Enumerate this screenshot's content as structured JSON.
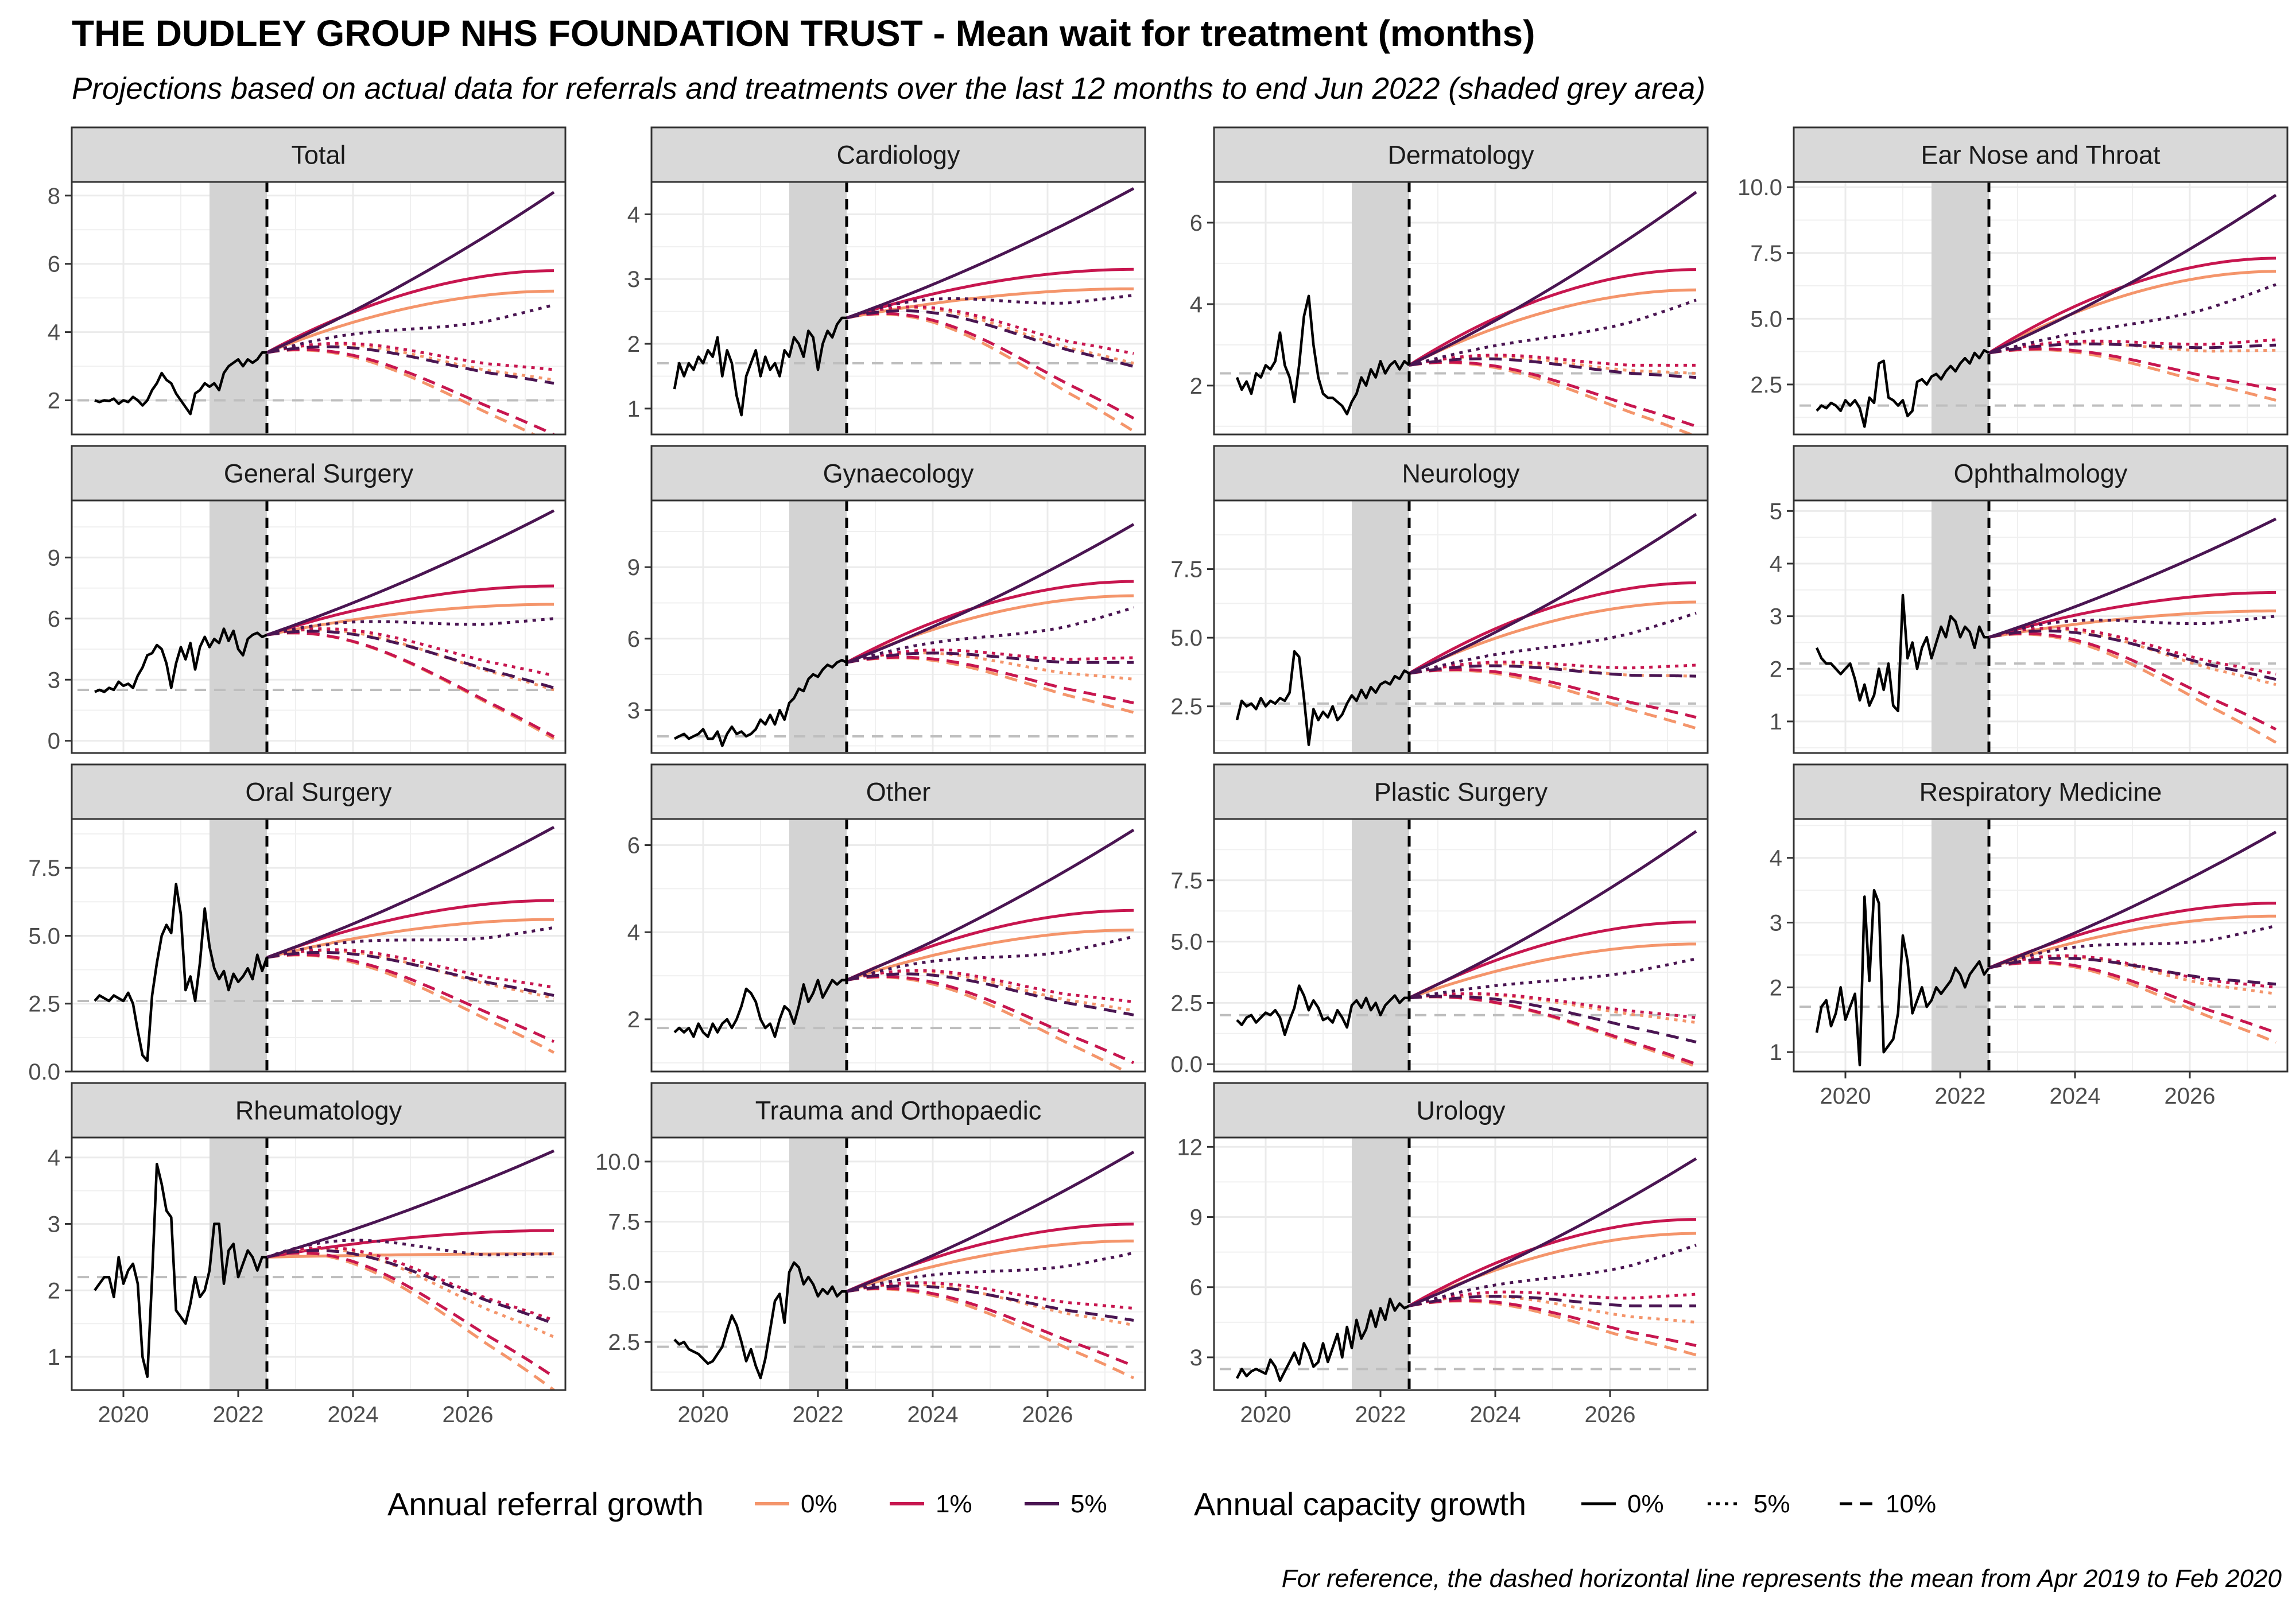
{
  "title": "THE DUDLEY GROUP NHS FOUNDATION TRUST - Mean wait for treatment (months)",
  "subtitle": "Projections based on actual data for referrals and treatments over the last 12 months to end Jun 2022 (shaded grey area)",
  "caption": "For reference, the dashed horizontal line represents the mean from Apr 2019 to Feb 2020",
  "legend": {
    "referral_title": "Annual referral growth",
    "referral_items": [
      {
        "label": "0%",
        "color": "#F4956B"
      },
      {
        "label": "1%",
        "color": "#C7164F"
      },
      {
        "label": "5%",
        "color": "#4A1552"
      }
    ],
    "capacity_title": "Annual capacity growth",
    "capacity_items": [
      {
        "label": "0%",
        "linetype": "solid"
      },
      {
        "label": "5%",
        "linetype": "dotted"
      },
      {
        "label": "10%",
        "linetype": "dashed"
      }
    ]
  },
  "chart_data": {
    "type": "line",
    "facet_layout": {
      "columns": 4,
      "rows": 4
    },
    "x_axis": {
      "range": [
        2019.1,
        2027.7
      ],
      "ticks": [
        2020,
        2022,
        2024,
        2026
      ]
    },
    "shaded_period": [
      2021.5,
      2022.5
    ],
    "projection_start": 2022.5,
    "projection_end": 2027.5,
    "colors": {
      "0%": "#F4956B",
      "1%": "#C7164F",
      "5%": "#4A1552",
      "actual": "#000000",
      "baseline": "#bebebe"
    },
    "panels": [
      {
        "name": "Total",
        "ylim": [
          1.0,
          8.4
        ],
        "yticks": [
          2,
          4,
          6,
          8
        ],
        "baseline": 2.0,
        "actual": [
          2.0,
          1.95,
          2.0,
          1.98,
          2.05,
          1.9,
          2.0,
          1.95,
          2.1,
          2.0,
          1.85,
          2.0,
          2.3,
          2.5,
          2.8,
          2.6,
          2.5,
          2.2,
          2.0,
          1.8,
          1.6,
          2.2,
          2.3,
          2.5,
          2.4,
          2.5,
          2.3,
          2.8,
          3.0,
          3.1,
          3.2,
          3.0,
          3.2,
          3.1,
          3.2,
          3.4,
          3.4
        ],
        "start": 3.4,
        "end": {
          "0": {
            "0": 5.2,
            "5": 2.6,
            "10": 0.7
          },
          "1": {
            "0": 5.8,
            "5": 2.9,
            "10": 1.0
          },
          "5": {
            "0": 8.1,
            "5": 4.8,
            "10": 2.5
          }
        }
      },
      {
        "name": "Cardiology",
        "ylim": [
          0.6,
          4.5
        ],
        "yticks": [
          1,
          2,
          3,
          4
        ],
        "baseline": 1.7,
        "actual": [
          1.3,
          1.7,
          1.5,
          1.7,
          1.6,
          1.8,
          1.7,
          1.9,
          1.8,
          2.1,
          1.5,
          1.9,
          1.7,
          1.2,
          0.9,
          1.5,
          1.7,
          1.9,
          1.5,
          1.8,
          1.6,
          1.7,
          1.5,
          1.9,
          1.8,
          2.1,
          2.0,
          1.8,
          2.2,
          2.1,
          1.6,
          2.0,
          2.2,
          2.1,
          2.3,
          2.4,
          2.4
        ],
        "start": 2.4,
        "end": {
          "0": {
            "0": 2.85,
            "5": 1.7,
            "10": 0.65
          },
          "1": {
            "0": 3.15,
            "5": 1.85,
            "10": 0.85
          },
          "5": {
            "0": 4.4,
            "5": 2.75,
            "10": 1.65
          }
        }
      },
      {
        "name": "Dermatology",
        "ylim": [
          0.8,
          7.0
        ],
        "yticks": [
          2,
          4,
          6
        ],
        "baseline": 2.3,
        "actual": [
          2.2,
          1.9,
          2.1,
          1.8,
          2.3,
          2.2,
          2.5,
          2.4,
          2.6,
          3.3,
          2.5,
          2.2,
          1.6,
          2.5,
          3.7,
          4.2,
          3.0,
          2.2,
          1.8,
          1.7,
          1.7,
          1.6,
          1.5,
          1.3,
          1.6,
          1.8,
          2.2,
          2.0,
          2.4,
          2.2,
          2.6,
          2.3,
          2.5,
          2.6,
          2.4,
          2.6,
          2.5
        ],
        "start": 2.5,
        "end": {
          "0": {
            "0": 4.35,
            "5": 2.3,
            "10": 0.75
          },
          "1": {
            "0": 4.85,
            "5": 2.5,
            "10": 1.0
          },
          "5": {
            "0": 6.75,
            "5": 4.1,
            "10": 2.2
          }
        }
      },
      {
        "name": "Ear Nose and Throat",
        "ylim": [
          0.6,
          10.2
        ],
        "yticks": [
          2.5,
          5.0,
          7.5,
          10.0
        ],
        "baseline": 1.7,
        "actual": [
          1.5,
          1.7,
          1.6,
          1.8,
          1.7,
          1.5,
          1.9,
          1.7,
          1.9,
          1.6,
          0.9,
          2.0,
          1.8,
          3.3,
          3.4,
          2.0,
          1.9,
          1.7,
          1.9,
          1.3,
          1.5,
          2.6,
          2.7,
          2.5,
          2.8,
          2.9,
          2.7,
          3.0,
          3.2,
          3.0,
          3.3,
          3.5,
          3.3,
          3.7,
          3.5,
          3.8,
          3.7
        ],
        "start": 3.7,
        "end": {
          "0": {
            "0": 6.8,
            "5": 3.8,
            "10": 1.9
          },
          "1": {
            "0": 7.3,
            "5": 4.2,
            "10": 2.3
          },
          "5": {
            "0": 9.7,
            "5": 6.3,
            "10": 4.0
          }
        }
      },
      {
        "name": "General Surgery",
        "ylim": [
          -0.6,
          11.8
        ],
        "yticks": [
          0,
          3,
          6,
          9
        ],
        "baseline": 2.5,
        "actual": [
          2.4,
          2.5,
          2.4,
          2.6,
          2.5,
          2.9,
          2.7,
          2.8,
          2.6,
          3.2,
          3.6,
          4.2,
          4.3,
          4.7,
          4.5,
          3.8,
          2.6,
          3.8,
          4.6,
          4.0,
          4.8,
          3.5,
          4.6,
          5.1,
          4.6,
          5.0,
          4.8,
          5.5,
          4.9,
          5.4,
          4.5,
          4.2,
          5.0,
          5.2,
          5.3,
          5.1,
          5.2
        ],
        "start": 5.2,
        "end": {
          "0": {
            "0": 6.7,
            "5": 2.5,
            "10": 0.1
          },
          "1": {
            "0": 7.6,
            "5": 3.2,
            "10": 0.2
          },
          "5": {
            "0": 11.3,
            "5": 6.0,
            "10": 2.6
          }
        }
      },
      {
        "name": "Gynaecology",
        "ylim": [
          1.2,
          11.8
        ],
        "yticks": [
          3,
          6,
          9
        ],
        "baseline": 1.9,
        "actual": [
          1.8,
          1.9,
          2.0,
          1.8,
          1.9,
          2.0,
          2.2,
          1.8,
          1.8,
          2.1,
          1.5,
          2.0,
          2.3,
          2.0,
          2.1,
          1.9,
          2.0,
          2.2,
          2.6,
          2.4,
          2.8,
          2.4,
          3.0,
          2.6,
          3.3,
          3.5,
          3.9,
          3.8,
          4.3,
          4.5,
          4.4,
          4.7,
          4.9,
          4.8,
          5.0,
          5.1,
          5.0
        ],
        "start": 5.0,
        "end": {
          "0": {
            "0": 7.8,
            "5": 4.3,
            "10": 2.9
          },
          "1": {
            "0": 8.4,
            "5": 5.2,
            "10": 3.3
          },
          "5": {
            "0": 10.8,
            "5": 7.3,
            "10": 5.0
          }
        }
      },
      {
        "name": "Neurology",
        "ylim": [
          0.8,
          10.0
        ],
        "yticks": [
          2.5,
          5.0,
          7.5
        ],
        "baseline": 2.6,
        "actual": [
          2.0,
          2.7,
          2.5,
          2.6,
          2.4,
          2.8,
          2.5,
          2.7,
          2.6,
          2.8,
          2.7,
          3.0,
          4.5,
          4.3,
          2.8,
          1.1,
          2.4,
          2.0,
          2.3,
          2.1,
          2.5,
          2.0,
          2.2,
          2.6,
          2.9,
          2.7,
          3.1,
          2.8,
          3.2,
          3.0,
          3.3,
          3.4,
          3.3,
          3.6,
          3.5,
          3.8,
          3.7
        ],
        "start": 3.7,
        "end": {
          "0": {
            "0": 6.3,
            "5": 3.6,
            "10": 1.7
          },
          "1": {
            "0": 7.0,
            "5": 4.0,
            "10": 2.1
          },
          "5": {
            "0": 9.5,
            "5": 5.9,
            "10": 3.6
          }
        }
      },
      {
        "name": "Ophthalmology",
        "ylim": [
          0.4,
          5.2
        ],
        "yticks": [
          1,
          2,
          3,
          4,
          5
        ],
        "baseline": 2.1,
        "actual": [
          2.4,
          2.2,
          2.1,
          2.1,
          2.0,
          1.9,
          2.0,
          2.1,
          1.8,
          1.4,
          1.7,
          1.3,
          1.5,
          2.0,
          1.6,
          2.1,
          1.3,
          1.2,
          3.4,
          2.2,
          2.5,
          2.0,
          2.4,
          2.6,
          2.2,
          2.5,
          2.8,
          2.6,
          3.0,
          2.9,
          2.6,
          2.8,
          2.7,
          2.4,
          2.8,
          2.6,
          2.6
        ],
        "start": 2.6,
        "end": {
          "0": {
            "0": 3.1,
            "5": 1.7,
            "10": 0.6
          },
          "1": {
            "0": 3.45,
            "5": 1.9,
            "10": 0.85
          },
          "5": {
            "0": 4.85,
            "5": 3.0,
            "10": 1.8
          }
        }
      },
      {
        "name": "Oral Surgery",
        "ylim": [
          0.0,
          9.3
        ],
        "yticks": [
          0.0,
          2.5,
          5.0,
          7.5
        ],
        "baseline": 2.6,
        "actual": [
          2.6,
          2.8,
          2.7,
          2.6,
          2.8,
          2.7,
          2.6,
          2.9,
          2.5,
          1.5,
          0.6,
          0.4,
          2.8,
          4.0,
          5.0,
          5.4,
          5.1,
          6.9,
          5.8,
          3.0,
          3.5,
          2.6,
          4.0,
          6.0,
          4.6,
          3.8,
          3.4,
          3.7,
          3.0,
          3.6,
          3.3,
          3.5,
          3.8,
          3.4,
          4.3,
          3.7,
          4.2
        ],
        "start": 4.2,
        "end": {
          "0": {
            "0": 5.6,
            "5": 2.7,
            "10": 0.7
          },
          "1": {
            "0": 6.3,
            "5": 3.1,
            "10": 1.1
          },
          "5": {
            "0": 9.0,
            "5": 5.3,
            "10": 2.8
          }
        }
      },
      {
        "name": "Other",
        "ylim": [
          0.8,
          6.6
        ],
        "yticks": [
          2,
          4,
          6
        ],
        "baseline": 1.8,
        "actual": [
          1.7,
          1.8,
          1.7,
          1.8,
          1.6,
          1.9,
          1.7,
          1.6,
          1.9,
          1.7,
          1.9,
          2.0,
          1.8,
          2.0,
          2.3,
          2.7,
          2.6,
          2.4,
          2.0,
          1.8,
          1.9,
          1.6,
          2.0,
          2.3,
          2.2,
          1.9,
          2.3,
          2.8,
          2.4,
          2.6,
          2.9,
          2.5,
          2.7,
          2.9,
          2.8,
          2.9,
          2.9
        ],
        "start": 2.9,
        "end": {
          "0": {
            "0": 4.05,
            "5": 2.2,
            "10": 0.7
          },
          "1": {
            "0": 4.5,
            "5": 2.4,
            "10": 1.0
          },
          "5": {
            "0": 6.35,
            "5": 3.9,
            "10": 2.1
          }
        }
      },
      {
        "name": "Plastic Surgery",
        "ylim": [
          -0.3,
          10.0
        ],
        "yticks": [
          0.0,
          2.5,
          5.0,
          7.5
        ],
        "baseline": 2.0,
        "actual": [
          1.8,
          1.6,
          1.9,
          2.0,
          1.7,
          1.9,
          2.1,
          2.0,
          2.2,
          1.9,
          1.2,
          1.8,
          2.3,
          3.2,
          2.8,
          2.2,
          2.6,
          2.3,
          1.8,
          1.9,
          1.7,
          2.2,
          1.9,
          1.5,
          2.4,
          2.6,
          2.3,
          2.7,
          2.2,
          2.5,
          2.0,
          2.4,
          2.6,
          2.8,
          2.5,
          2.7,
          2.7
        ],
        "start": 2.7,
        "end": {
          "0": {
            "0": 4.9,
            "5": 1.7,
            "10": -0.1
          },
          "1": {
            "0": 5.8,
            "5": 1.9,
            "10": 0.0
          },
          "5": {
            "0": 9.5,
            "5": 4.3,
            "10": 0.9
          }
        }
      },
      {
        "name": "Respiratory Medicine",
        "ylim": [
          0.7,
          4.6
        ],
        "yticks": [
          1,
          2,
          3,
          4
        ],
        "baseline": 1.7,
        "actual": [
          1.3,
          1.7,
          1.8,
          1.4,
          1.6,
          2.0,
          1.5,
          1.7,
          1.9,
          0.8,
          3.4,
          2.1,
          3.5,
          3.3,
          1.0,
          1.1,
          1.2,
          1.6,
          2.8,
          2.4,
          1.6,
          1.8,
          2.0,
          1.7,
          1.8,
          2.0,
          1.9,
          2.0,
          2.1,
          2.3,
          2.2,
          2.0,
          2.2,
          2.3,
          2.4,
          2.2,
          2.3
        ],
        "start": 2.3,
        "end": {
          "0": {
            "0": 3.1,
            "5": 1.9,
            "10": 1.15
          },
          "1": {
            "0": 3.3,
            "5": 2.0,
            "10": 1.3
          },
          "5": {
            "0": 4.4,
            "5": 2.95,
            "10": 2.05
          }
        }
      },
      {
        "name": "Rheumatology",
        "ylim": [
          0.5,
          4.3
        ],
        "yticks": [
          1,
          2,
          3,
          4
        ],
        "baseline": 2.2,
        "actual": [
          2.0,
          2.1,
          2.2,
          2.2,
          1.9,
          2.5,
          2.1,
          2.3,
          2.4,
          2.1,
          1.0,
          0.7,
          2.2,
          3.9,
          3.6,
          3.2,
          3.1,
          1.7,
          1.6,
          1.5,
          1.8,
          2.2,
          1.9,
          2.0,
          2.3,
          3.0,
          3.0,
          2.1,
          2.6,
          2.7,
          2.2,
          2.4,
          2.6,
          2.5,
          2.3,
          2.5,
          2.5
        ],
        "start": 2.5,
        "end": {
          "0": {
            "0": 2.55,
            "5": 1.3,
            "10": 0.5
          },
          "1": {
            "0": 2.9,
            "5": 1.55,
            "10": 0.7
          },
          "5": {
            "0": 4.1,
            "5": 2.55,
            "10": 1.5
          }
        }
      },
      {
        "name": "Trauma and Orthopaedic",
        "ylim": [
          0.5,
          11.0
        ],
        "yticks": [
          2.5,
          5.0,
          7.5,
          10.0
        ],
        "baseline": 2.3,
        "actual": [
          2.6,
          2.4,
          2.5,
          2.2,
          2.1,
          2.0,
          1.8,
          1.6,
          1.7,
          2.0,
          2.3,
          3.0,
          3.6,
          3.2,
          2.5,
          1.7,
          2.2,
          1.5,
          1.0,
          1.8,
          3.0,
          4.2,
          4.5,
          3.3,
          5.4,
          5.8,
          5.6,
          4.9,
          5.2,
          4.9,
          4.4,
          4.7,
          4.5,
          4.8,
          4.4,
          4.6,
          4.6
        ],
        "start": 4.6,
        "end": {
          "0": {
            "0": 6.7,
            "5": 3.2,
            "10": 1.0
          },
          "1": {
            "0": 7.4,
            "5": 3.9,
            "10": 1.5
          },
          "5": {
            "0": 10.4,
            "5": 6.2,
            "10": 3.4
          }
        }
      },
      {
        "name": "Urology",
        "ylim": [
          1.6,
          12.4
        ],
        "yticks": [
          3,
          6,
          9,
          12
        ],
        "baseline": 2.5,
        "actual": [
          2.1,
          2.5,
          2.2,
          2.4,
          2.5,
          2.4,
          2.3,
          2.9,
          2.6,
          2.0,
          2.4,
          2.8,
          3.2,
          2.7,
          3.6,
          3.2,
          2.6,
          2.8,
          3.6,
          2.8,
          3.4,
          4.0,
          3.0,
          4.3,
          3.4,
          4.6,
          3.8,
          4.2,
          5.0,
          4.3,
          5.1,
          4.6,
          5.5,
          5.0,
          5.3,
          5.1,
          5.2
        ],
        "start": 5.2,
        "end": {
          "0": {
            "0": 8.3,
            "5": 4.5,
            "10": 3.1
          },
          "1": {
            "0": 8.9,
            "5": 5.7,
            "10": 3.5
          },
          "5": {
            "0": 11.5,
            "5": 7.8,
            "10": 5.2
          }
        }
      }
    ]
  }
}
